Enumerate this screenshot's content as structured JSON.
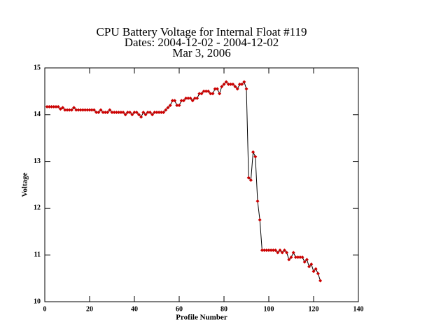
{
  "chart_data": {
    "type": "line",
    "title": [
      "CPU Battery Voltage for Internal Float #119",
      "Dates:  2004-12-02 -  2004-12-02",
      "Mar  3, 2006"
    ],
    "xlabel": "Profile Number",
    "ylabel": "Voltage",
    "xlim": [
      0,
      140
    ],
    "xticks": [
      0,
      20,
      40,
      60,
      80,
      100,
      120,
      140
    ],
    "ylim": [
      10,
      15
    ],
    "yticks": [
      10,
      11,
      12,
      13,
      14,
      15
    ],
    "line_color": "#000000",
    "marker_color": "#cc0000",
    "x": [
      1,
      2,
      3,
      4,
      5,
      6,
      7,
      8,
      9,
      10,
      11,
      12,
      13,
      14,
      15,
      16,
      17,
      18,
      19,
      20,
      21,
      22,
      23,
      24,
      25,
      26,
      27,
      28,
      29,
      30,
      31,
      32,
      33,
      34,
      35,
      36,
      37,
      38,
      39,
      40,
      41,
      42,
      43,
      44,
      45,
      46,
      47,
      48,
      49,
      50,
      51,
      52,
      53,
      54,
      55,
      56,
      57,
      58,
      59,
      60,
      61,
      62,
      63,
      64,
      65,
      66,
      67,
      68,
      69,
      70,
      71,
      72,
      73,
      74,
      75,
      76,
      77,
      78,
      79,
      80,
      81,
      82,
      83,
      84,
      85,
      86,
      87,
      88,
      89,
      90,
      91,
      92,
      93,
      94,
      95,
      96,
      97,
      98,
      99,
      100,
      101,
      102,
      103,
      104,
      105,
      106,
      107,
      108,
      109,
      110,
      111,
      112,
      113,
      114,
      115,
      116,
      117,
      118,
      119,
      120,
      121,
      122,
      123
    ],
    "values": [
      14.17,
      14.17,
      14.17,
      14.17,
      14.17,
      14.17,
      14.12,
      14.15,
      14.1,
      14.1,
      14.1,
      14.1,
      14.15,
      14.1,
      14.1,
      14.1,
      14.1,
      14.1,
      14.1,
      14.1,
      14.1,
      14.1,
      14.05,
      14.05,
      14.1,
      14.05,
      14.05,
      14.05,
      14.1,
      14.05,
      14.05,
      14.05,
      14.05,
      14.05,
      14.05,
      14.0,
      14.05,
      14.05,
      14.0,
      14.05,
      14.05,
      14.0,
      13.95,
      14.05,
      14.0,
      14.05,
      14.05,
      14.0,
      14.05,
      14.05,
      14.05,
      14.05,
      14.05,
      14.1,
      14.15,
      14.2,
      14.3,
      14.3,
      14.2,
      14.2,
      14.3,
      14.3,
      14.35,
      14.35,
      14.35,
      14.3,
      14.35,
      14.35,
      14.45,
      14.45,
      14.5,
      14.5,
      14.5,
      14.45,
      14.45,
      14.55,
      14.55,
      14.45,
      14.6,
      14.65,
      14.7,
      14.65,
      14.65,
      14.65,
      14.6,
      14.55,
      14.65,
      14.65,
      14.7,
      14.55,
      12.65,
      12.6,
      13.2,
      13.1,
      12.15,
      11.75,
      11.1,
      11.1,
      11.1,
      11.1,
      11.1,
      11.1,
      11.1,
      11.05,
      11.1,
      11.05,
      11.1,
      11.05,
      10.9,
      10.95,
      11.05,
      10.95,
      10.95,
      10.95,
      10.95,
      10.85,
      10.9,
      10.75,
      10.8,
      10.65,
      10.7,
      10.6,
      10.45
    ]
  }
}
